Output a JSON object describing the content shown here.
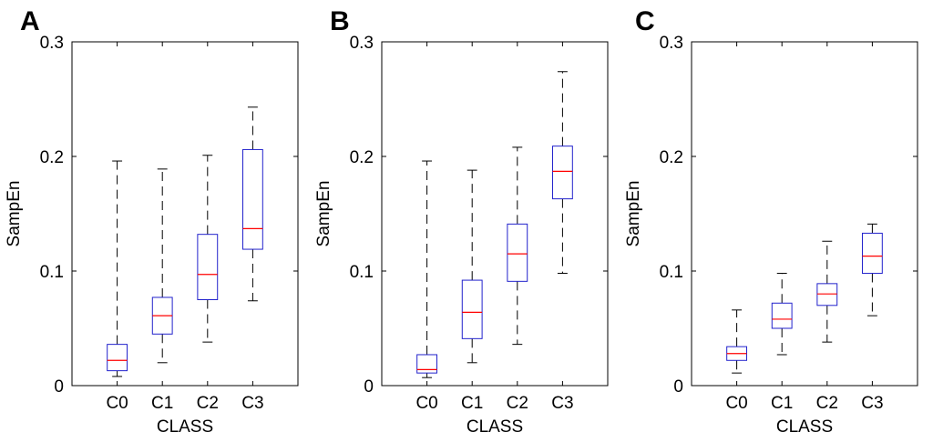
{
  "chart_data": [
    {
      "type": "box",
      "panel": "A",
      "xlabel": "CLASS",
      "ylabel": "SampEn",
      "ylim": [
        0,
        0.3
      ],
      "yticks": [
        0,
        0.1,
        0.2,
        0.3
      ],
      "ytick_labels": [
        "0",
        "0.1",
        "0.2",
        "0.3"
      ],
      "categories": [
        "C0",
        "C1",
        "C2",
        "C3"
      ],
      "boxes": [
        {
          "category": "C0",
          "whisker_low": 0.008,
          "q1": 0.013,
          "median": 0.022,
          "q3": 0.036,
          "whisker_high": 0.196
        },
        {
          "category": "C1",
          "whisker_low": 0.02,
          "q1": 0.045,
          "median": 0.061,
          "q3": 0.077,
          "whisker_high": 0.189
        },
        {
          "category": "C2",
          "whisker_low": 0.038,
          "q1": 0.075,
          "median": 0.097,
          "q3": 0.132,
          "whisker_high": 0.201
        },
        {
          "category": "C3",
          "whisker_low": 0.074,
          "q1": 0.119,
          "median": 0.137,
          "q3": 0.206,
          "whisker_high": 0.243
        }
      ],
      "box_color": "#2222cc",
      "median_color": "#ff0000",
      "whisker_color": "#000000"
    },
    {
      "type": "box",
      "panel": "B",
      "xlabel": "CLASS",
      "ylabel": "SampEn",
      "ylim": [
        0,
        0.3
      ],
      "yticks": [
        0,
        0.1,
        0.2,
        0.3
      ],
      "ytick_labels": [
        "0",
        "0.1",
        "0.2",
        "0.3"
      ],
      "categories": [
        "C0",
        "C1",
        "C2",
        "C3"
      ],
      "boxes": [
        {
          "category": "C0",
          "whisker_low": 0.007,
          "q1": 0.011,
          "median": 0.014,
          "q3": 0.027,
          "whisker_high": 0.196
        },
        {
          "category": "C1",
          "whisker_low": 0.02,
          "q1": 0.041,
          "median": 0.064,
          "q3": 0.092,
          "whisker_high": 0.188
        },
        {
          "category": "C2",
          "whisker_low": 0.036,
          "q1": 0.091,
          "median": 0.115,
          "q3": 0.141,
          "whisker_high": 0.208
        },
        {
          "category": "C3",
          "whisker_low": 0.098,
          "q1": 0.163,
          "median": 0.187,
          "q3": 0.209,
          "whisker_high": 0.274
        }
      ],
      "box_color": "#2222cc",
      "median_color": "#ff0000",
      "whisker_color": "#000000"
    },
    {
      "type": "box",
      "panel": "C",
      "xlabel": "CLASS",
      "ylabel": "SampEn",
      "ylim": [
        0,
        0.3
      ],
      "yticks": [
        0,
        0.1,
        0.2,
        0.3
      ],
      "ytick_labels": [
        "0",
        "0.1",
        "0.2",
        "0.3"
      ],
      "categories": [
        "C0",
        "C1",
        "C2",
        "C3"
      ],
      "boxes": [
        {
          "category": "C0",
          "whisker_low": 0.011,
          "q1": 0.022,
          "median": 0.028,
          "q3": 0.034,
          "whisker_high": 0.066
        },
        {
          "category": "C1",
          "whisker_low": 0.027,
          "q1": 0.05,
          "median": 0.058,
          "q3": 0.072,
          "whisker_high": 0.098
        },
        {
          "category": "C2",
          "whisker_low": 0.038,
          "q1": 0.07,
          "median": 0.08,
          "q3": 0.089,
          "whisker_high": 0.126
        },
        {
          "category": "C3",
          "whisker_low": 0.061,
          "q1": 0.098,
          "median": 0.113,
          "q3": 0.133,
          "whisker_high": 0.141
        }
      ],
      "box_color": "#2222cc",
      "median_color": "#ff0000",
      "whisker_color": "#000000"
    }
  ]
}
